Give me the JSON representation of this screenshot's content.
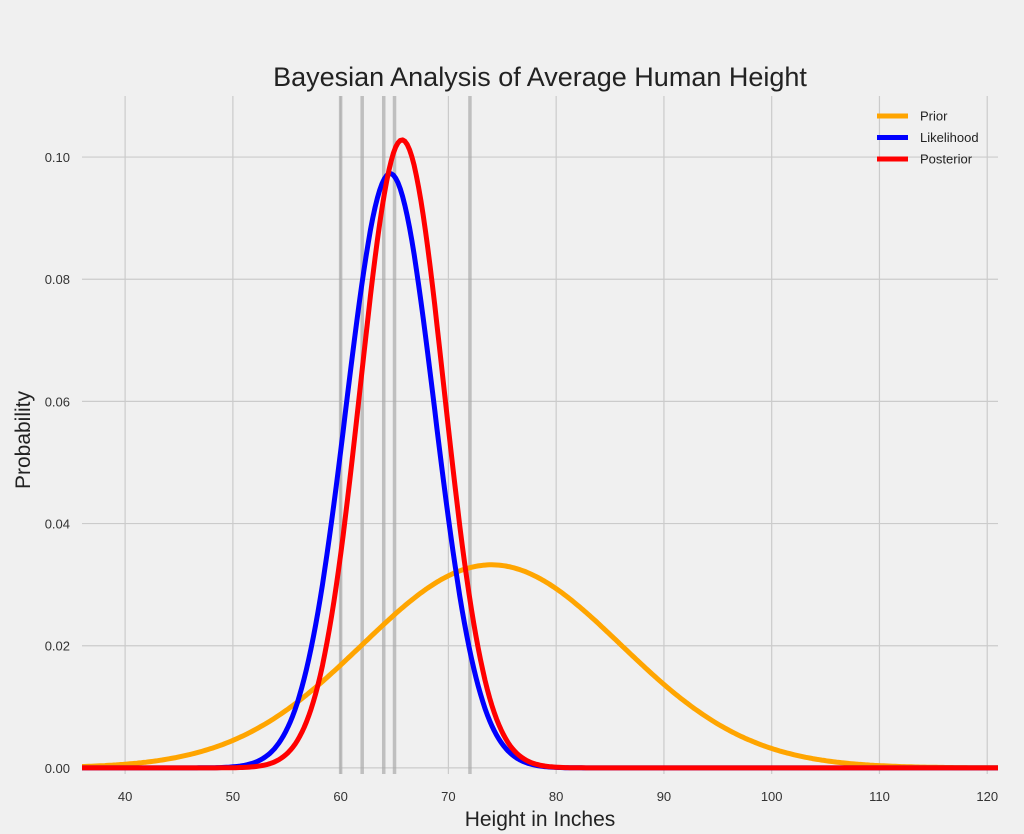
{
  "chart_data": {
    "type": "line",
    "title": "Bayesian Analysis of Average Human Height",
    "xlabel": "Height in Inches",
    "ylabel": "Probability",
    "xlim": [
      36,
      121
    ],
    "ylim": [
      -0.001,
      0.11
    ],
    "xticks": [
      40,
      50,
      60,
      70,
      80,
      90,
      100,
      110,
      120
    ],
    "yticks": [
      0.0,
      0.02,
      0.04,
      0.06,
      0.08,
      0.1
    ],
    "ytick_labels": [
      "0.00",
      "0.02",
      "0.04",
      "0.06",
      "0.08",
      "0.10"
    ],
    "grid": true,
    "legend_position": "top-right",
    "observations": [
      60,
      62,
      64,
      65,
      72
    ],
    "series": [
      {
        "name": "Prior",
        "color": "#ffa500",
        "distribution": "normal",
        "mean": 74,
        "sd": 12
      },
      {
        "name": "Likelihood",
        "color": "#0000ff",
        "distribution": "normal",
        "mean": 64.6,
        "sd": 4.1
      },
      {
        "name": "Posterior",
        "color": "#ff0000",
        "distribution": "normal",
        "mean": 65.7,
        "sd": 3.88
      }
    ]
  }
}
